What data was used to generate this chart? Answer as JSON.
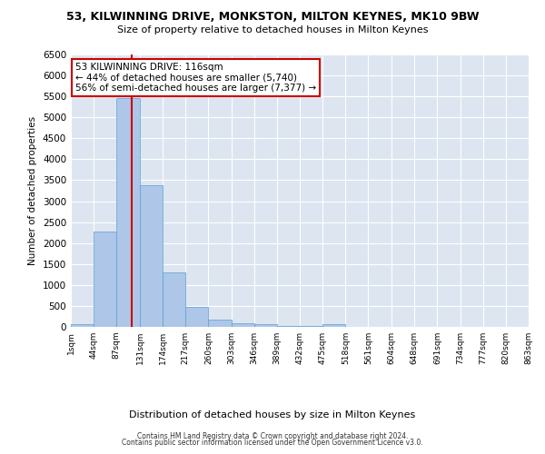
{
  "title": "53, KILWINNING DRIVE, MONKSTON, MILTON KEYNES, MK10 9BW",
  "subtitle": "Size of property relative to detached houses in Milton Keynes",
  "xlabel": "Distribution of detached houses by size in Milton Keynes",
  "ylabel": "Number of detached properties",
  "annotation_line1": "53 KILWINNING DRIVE: 116sqm",
  "annotation_line2": "← 44% of detached houses are smaller (5,740)",
  "annotation_line3": "56% of semi-detached houses are larger (7,377) →",
  "footer_line1": "Contains HM Land Registry data © Crown copyright and database right 2024.",
  "footer_line2": "Contains public sector information licensed under the Open Government Licence v3.0.",
  "property_size_sqm": 116,
  "bin_edges": [
    1,
    44,
    87,
    131,
    174,
    217,
    260,
    303,
    346,
    389,
    432,
    475,
    518,
    561,
    604,
    648,
    691,
    734,
    777,
    820,
    863
  ],
  "bin_labels": [
    "1sqm",
    "44sqm",
    "87sqm",
    "131sqm",
    "174sqm",
    "217sqm",
    "260sqm",
    "303sqm",
    "346sqm",
    "389sqm",
    "432sqm",
    "475sqm",
    "518sqm",
    "561sqm",
    "604sqm",
    "648sqm",
    "691sqm",
    "734sqm",
    "777sqm",
    "820sqm",
    "863sqm"
  ],
  "counts": [
    70,
    2280,
    5450,
    3380,
    1310,
    480,
    165,
    80,
    55,
    30,
    15,
    55,
    10,
    5,
    5,
    5,
    5,
    5,
    5,
    5
  ],
  "bar_color": "#aec6e8",
  "bar_edge_color": "#5a9fd4",
  "vline_color": "#cc0000",
  "vline_x": 116,
  "annotation_box_color": "#ffffff",
  "annotation_box_edgecolor": "#cc0000",
  "bg_color": "#dde5f0",
  "grid_color": "#ffffff",
  "ylim": [
    0,
    6500
  ],
  "yticks": [
    0,
    500,
    1000,
    1500,
    2000,
    2500,
    3000,
    3500,
    4000,
    4500,
    5000,
    5500,
    6000,
    6500
  ]
}
